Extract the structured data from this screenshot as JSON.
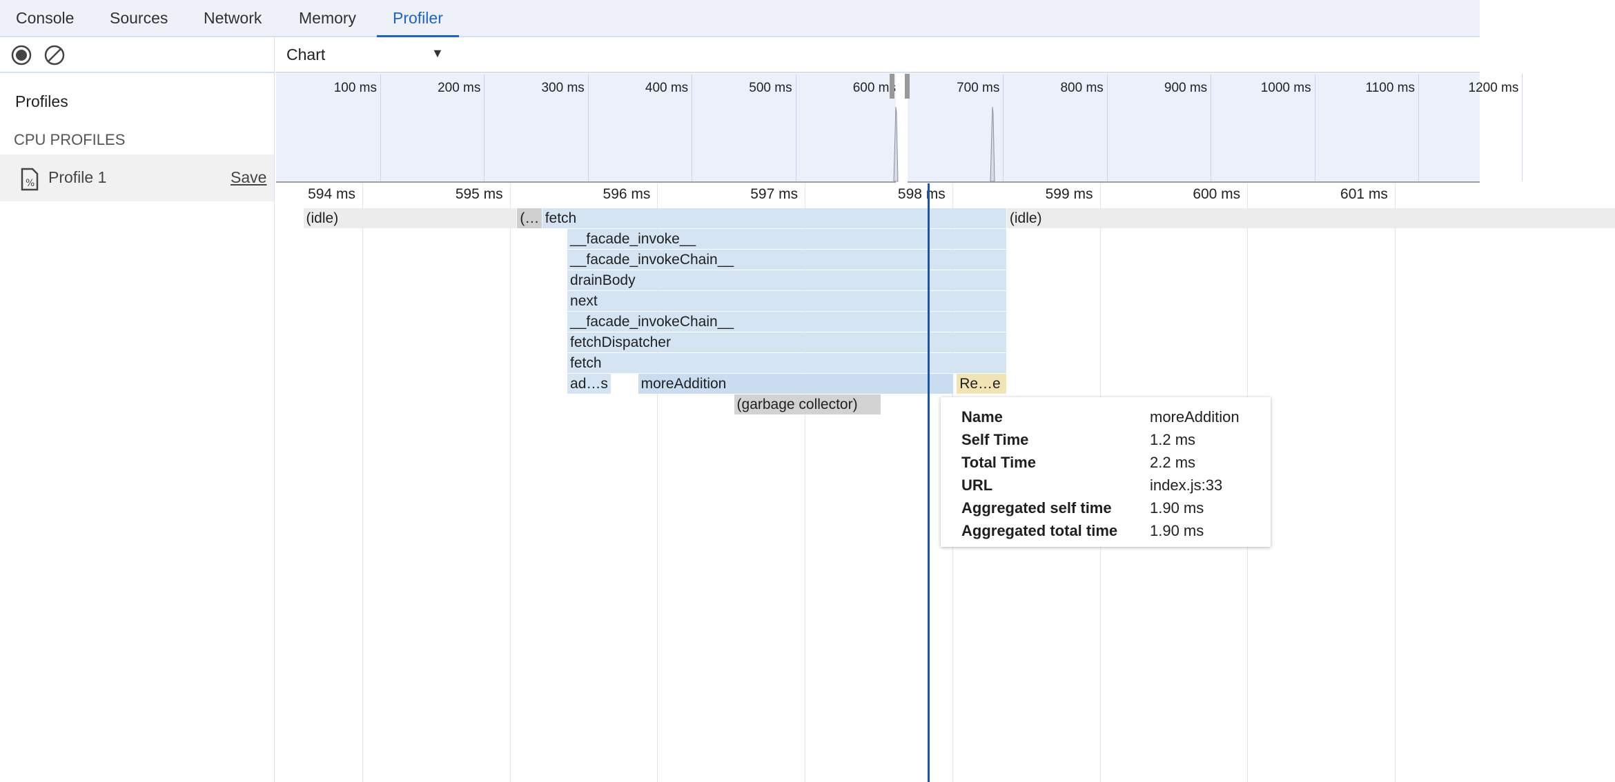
{
  "tabs": [
    {
      "label": "Console"
    },
    {
      "label": "Sources"
    },
    {
      "label": "Network"
    },
    {
      "label": "Memory"
    },
    {
      "label": "Profiler",
      "active": true
    }
  ],
  "toolbar": {
    "record_icon": "record-icon",
    "clear_icon": "clear-icon",
    "view_select": "Chart"
  },
  "sidebar": {
    "title": "Profiles",
    "section": "CPU PROFILES",
    "profiles": [
      {
        "name": "Profile 1",
        "save": "Save"
      }
    ]
  },
  "overview": {
    "ticks": [
      "100 ms",
      "200 ms",
      "300 ms",
      "400 ms",
      "500 ms",
      "600 ms",
      "700 ms",
      "800 ms",
      "900 ms",
      "1000 ms",
      "1100 ms",
      "1200 ms"
    ]
  },
  "ruler": {
    "ticks": [
      "594 ms",
      "595 ms",
      "596 ms",
      "597 ms",
      "598 ms",
      "599 ms",
      "600 ms",
      "601 ms"
    ]
  },
  "flame": [
    {
      "label": "(idle)",
      "row": 0,
      "start": 593.6,
      "end": 595.05,
      "color": "#ececec"
    },
    {
      "label": "(…",
      "row": 0,
      "start": 595.05,
      "end": 595.22,
      "color": "#cfcfcf"
    },
    {
      "label": "fetch",
      "row": 0,
      "start": 595.22,
      "end": 598.37,
      "color": "#d4e4f3"
    },
    {
      "label": "(idle)",
      "row": 0,
      "start": 598.37,
      "end": 602.5,
      "color": "#ececec"
    },
    {
      "label": "__facade_invoke__",
      "row": 1,
      "start": 595.39,
      "end": 598.37,
      "color": "#d4e4f3"
    },
    {
      "label": "__facade_invokeChain__",
      "row": 2,
      "start": 595.39,
      "end": 598.37,
      "color": "#d4e4f3"
    },
    {
      "label": "drainBody",
      "row": 3,
      "start": 595.39,
      "end": 598.37,
      "color": "#d4e4f3"
    },
    {
      "label": "next",
      "row": 4,
      "start": 595.39,
      "end": 598.37,
      "color": "#d4e4f3"
    },
    {
      "label": "__facade_invokeChain__",
      "row": 5,
      "start": 595.39,
      "end": 598.37,
      "color": "#d4e4f3"
    },
    {
      "label": "fetchDispatcher",
      "row": 6,
      "start": 595.39,
      "end": 598.37,
      "color": "#d4e4f3"
    },
    {
      "label": "fetch",
      "row": 7,
      "start": 595.39,
      "end": 598.37,
      "color": "#d4e4f3"
    },
    {
      "label": "ad…s",
      "row": 8,
      "start": 595.39,
      "end": 595.69,
      "color": "#d4e4f3"
    },
    {
      "label": "moreAddition",
      "row": 8,
      "start": 595.87,
      "end": 598.01,
      "color": "#c9dcf0"
    },
    {
      "label": "Re…e",
      "row": 8,
      "start": 598.03,
      "end": 598.37,
      "color": "#f0e3b4"
    },
    {
      "label": "(garbage collector)",
      "row": 9,
      "start": 596.52,
      "end": 597.52,
      "color": "#d2d2d2"
    }
  ],
  "tooltip": {
    "rows": [
      {
        "key": "Name",
        "value": "moreAddition"
      },
      {
        "key": "Self Time",
        "value": "1.2 ms"
      },
      {
        "key": "Total Time",
        "value": "2.2 ms"
      },
      {
        "key": "URL",
        "value": "index.js:33"
      },
      {
        "key": "Aggregated self time",
        "value": "1.90 ms"
      },
      {
        "key": "Aggregated total time",
        "value": "1.90 ms"
      }
    ]
  }
}
